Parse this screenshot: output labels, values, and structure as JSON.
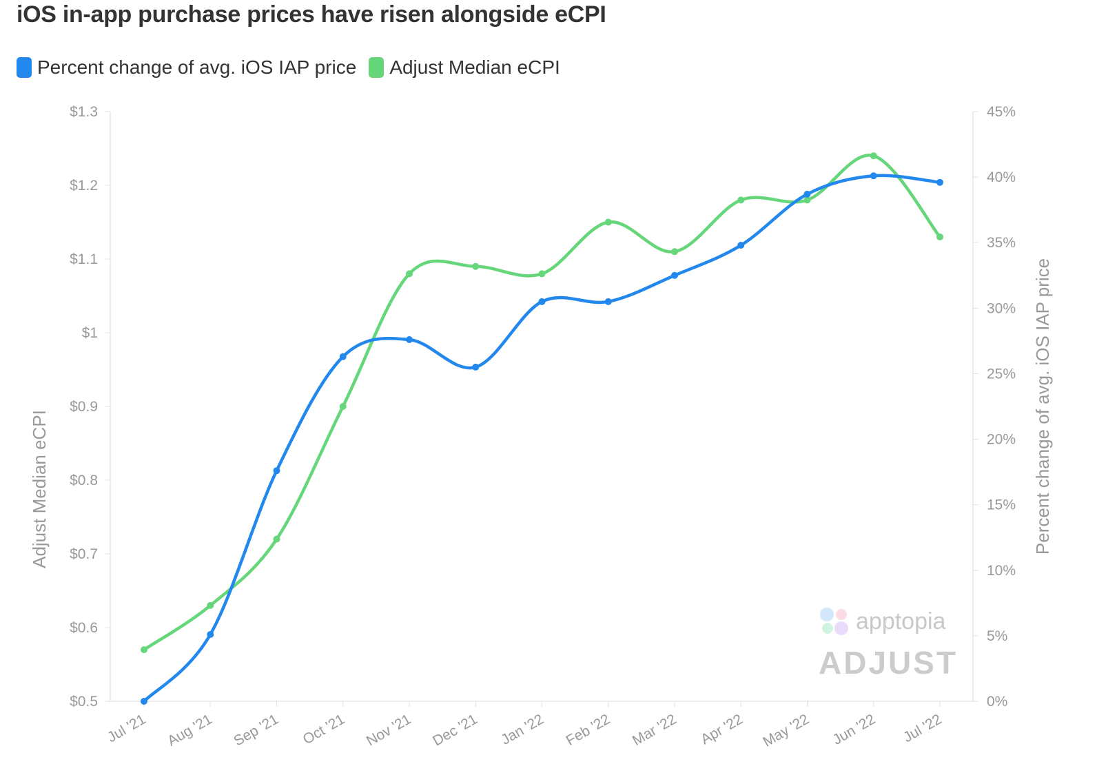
{
  "chart_data": {
    "type": "line",
    "title": "iOS in-app purchase prices have risen alongside eCPI",
    "categories": [
      "Jul '21",
      "Aug '21",
      "Sep '21",
      "Oct '21",
      "Nov '21",
      "Dec '21",
      "Jan '22",
      "Feb '22",
      "Mar '22",
      "Apr '22",
      "May '22",
      "Jun '22",
      "Jul '22"
    ],
    "series": [
      {
        "name": "Percent change of avg. iOS IAP price",
        "axis": "right",
        "color": "#2288ee",
        "values": [
          0,
          5.1,
          17.6,
          26.3,
          27.6,
          25.5,
          30.5,
          30.5,
          32.5,
          34.8,
          38.7,
          40.1,
          39.6
        ]
      },
      {
        "name": "Adjust Median eCPI",
        "axis": "left",
        "color": "#66d67a",
        "values": [
          0.57,
          0.63,
          0.72,
          0.9,
          1.08,
          1.09,
          1.08,
          1.15,
          1.11,
          1.18,
          1.18,
          1.24,
          1.13
        ]
      }
    ],
    "ylabel_left": "Adjust Median eCPI",
    "ylabel_right": "Percent change of avg. iOS IAP price",
    "ylim_left": [
      0.5,
      1.3
    ],
    "ylim_right": [
      0,
      45
    ],
    "yticks_left": [
      "$0.5",
      "$0.6",
      "$0.7",
      "$0.8",
      "$0.9",
      "$1",
      "$1.1",
      "$1.2",
      "$1.3"
    ],
    "yticks_right": [
      "0%",
      "5%",
      "10%",
      "15%",
      "20%",
      "25%",
      "30%",
      "35%",
      "40%",
      "45%"
    ],
    "grid": false,
    "legend_placement": "top-left",
    "smooth": true
  },
  "watermark": {
    "logo1": "apptopia",
    "logo2": "ADJUST"
  }
}
